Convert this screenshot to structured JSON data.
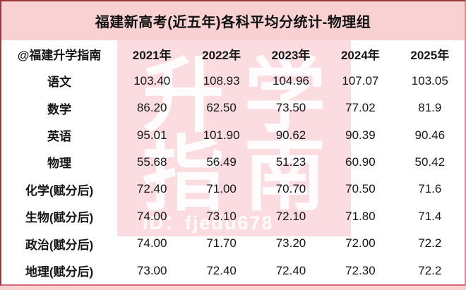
{
  "title": "福建新高考(近五年)各科平均分统计-物理组",
  "table": {
    "corner_label": "@福建升学指南",
    "year_headers": [
      "2021年",
      "2022年",
      "2023年",
      "2024年",
      "2025年"
    ],
    "rows": [
      {
        "label": "语文",
        "values": [
          "103.40",
          "108.93",
          "104.96",
          "107.07",
          "103.05"
        ]
      },
      {
        "label": "数学",
        "values": [
          "86.20",
          "62.50",
          "73.50",
          "77.02",
          "81.9"
        ]
      },
      {
        "label": "英语",
        "values": [
          "95.01",
          "101.90",
          "90.62",
          "90.39",
          "90.46"
        ]
      },
      {
        "label": "物理",
        "values": [
          "55.68",
          "56.49",
          "51.23",
          "60.90",
          "50.42"
        ]
      },
      {
        "label": "化学(赋分后)",
        "values": [
          "72.40",
          "71.00",
          "70.70",
          "70.50",
          "71.6"
        ]
      },
      {
        "label": "生物(赋分后)",
        "values": [
          "74.00",
          "73.10",
          "72.10",
          "71.80",
          "71.4"
        ]
      },
      {
        "label": "政治(赋分后)",
        "values": [
          "74.00",
          "71.70",
          "73.20",
          "72.00",
          "72.2"
        ]
      },
      {
        "label": "地理(赋分后)",
        "values": [
          "73.00",
          "72.40",
          "72.40",
          "72.30",
          "72.2"
        ]
      }
    ]
  },
  "watermark": {
    "line1": "升学",
    "line2": "指南",
    "id_text": "ID：fjedu678"
  },
  "colors": {
    "page_pink": "#f9d1d3",
    "watermark_pink": "#fbdce0",
    "border_red": "#96383e",
    "text": "#161616"
  },
  "chart_data": {
    "type": "table",
    "title": "福建新高考(近五年)各科平均分统计-物理组",
    "categories": [
      "2021年",
      "2022年",
      "2023年",
      "2024年",
      "2025年"
    ],
    "series": [
      {
        "name": "语文",
        "values": [
          103.4,
          108.93,
          104.96,
          107.07,
          103.05
        ]
      },
      {
        "name": "数学",
        "values": [
          86.2,
          62.5,
          73.5,
          77.02,
          81.9
        ]
      },
      {
        "name": "英语",
        "values": [
          95.01,
          101.9,
          90.62,
          90.39,
          90.46
        ]
      },
      {
        "name": "物理",
        "values": [
          55.68,
          56.49,
          51.23,
          60.9,
          50.42
        ]
      },
      {
        "name": "化学(赋分后)",
        "values": [
          72.4,
          71.0,
          70.7,
          70.5,
          71.6
        ]
      },
      {
        "name": "生物(赋分后)",
        "values": [
          74.0,
          73.1,
          72.1,
          71.8,
          71.4
        ]
      },
      {
        "name": "政治(赋分后)",
        "values": [
          74.0,
          71.7,
          73.2,
          72.0,
          72.2
        ]
      },
      {
        "name": "地理(赋分后)",
        "values": [
          73.0,
          72.4,
          72.4,
          72.3,
          72.2
        ]
      }
    ]
  }
}
